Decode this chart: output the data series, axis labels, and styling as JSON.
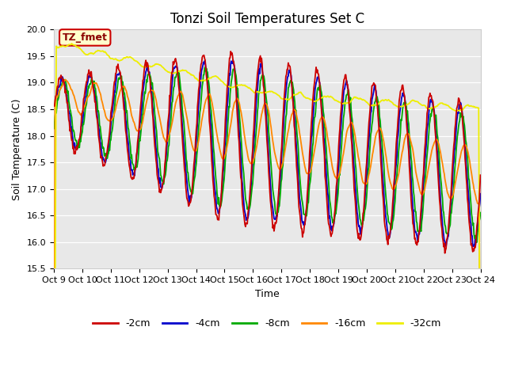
{
  "title": "Tonzi Soil Temperatures Set C",
  "xlabel": "Time",
  "ylabel": "Soil Temperature (C)",
  "ylim": [
    15.5,
    20.0
  ],
  "tick_labels": [
    "Oct 9",
    "Oct 10",
    "Oct 11",
    "Oct 12",
    "Oct 13",
    "Oct 14",
    "Oct 15",
    "Oct 16",
    "Oct 17",
    "Oct 18",
    "Oct 19",
    "Oct 20",
    "Oct 21",
    "Oct 22",
    "Oct 23",
    "Oct 24"
  ],
  "colors": {
    "2cm": "#cc0000",
    "4cm": "#0000cc",
    "8cm": "#00aa00",
    "16cm": "#ff8800",
    "32cm": "#eeee00"
  },
  "annotation_text": "TZ_fmet",
  "annotation_bg": "#ffffcc",
  "annotation_border": "#cc0000",
  "plot_bg": "#e8e8e8",
  "n_points": 720,
  "title_fontsize": 12,
  "label_fontsize": 9,
  "tick_fontsize": 8
}
